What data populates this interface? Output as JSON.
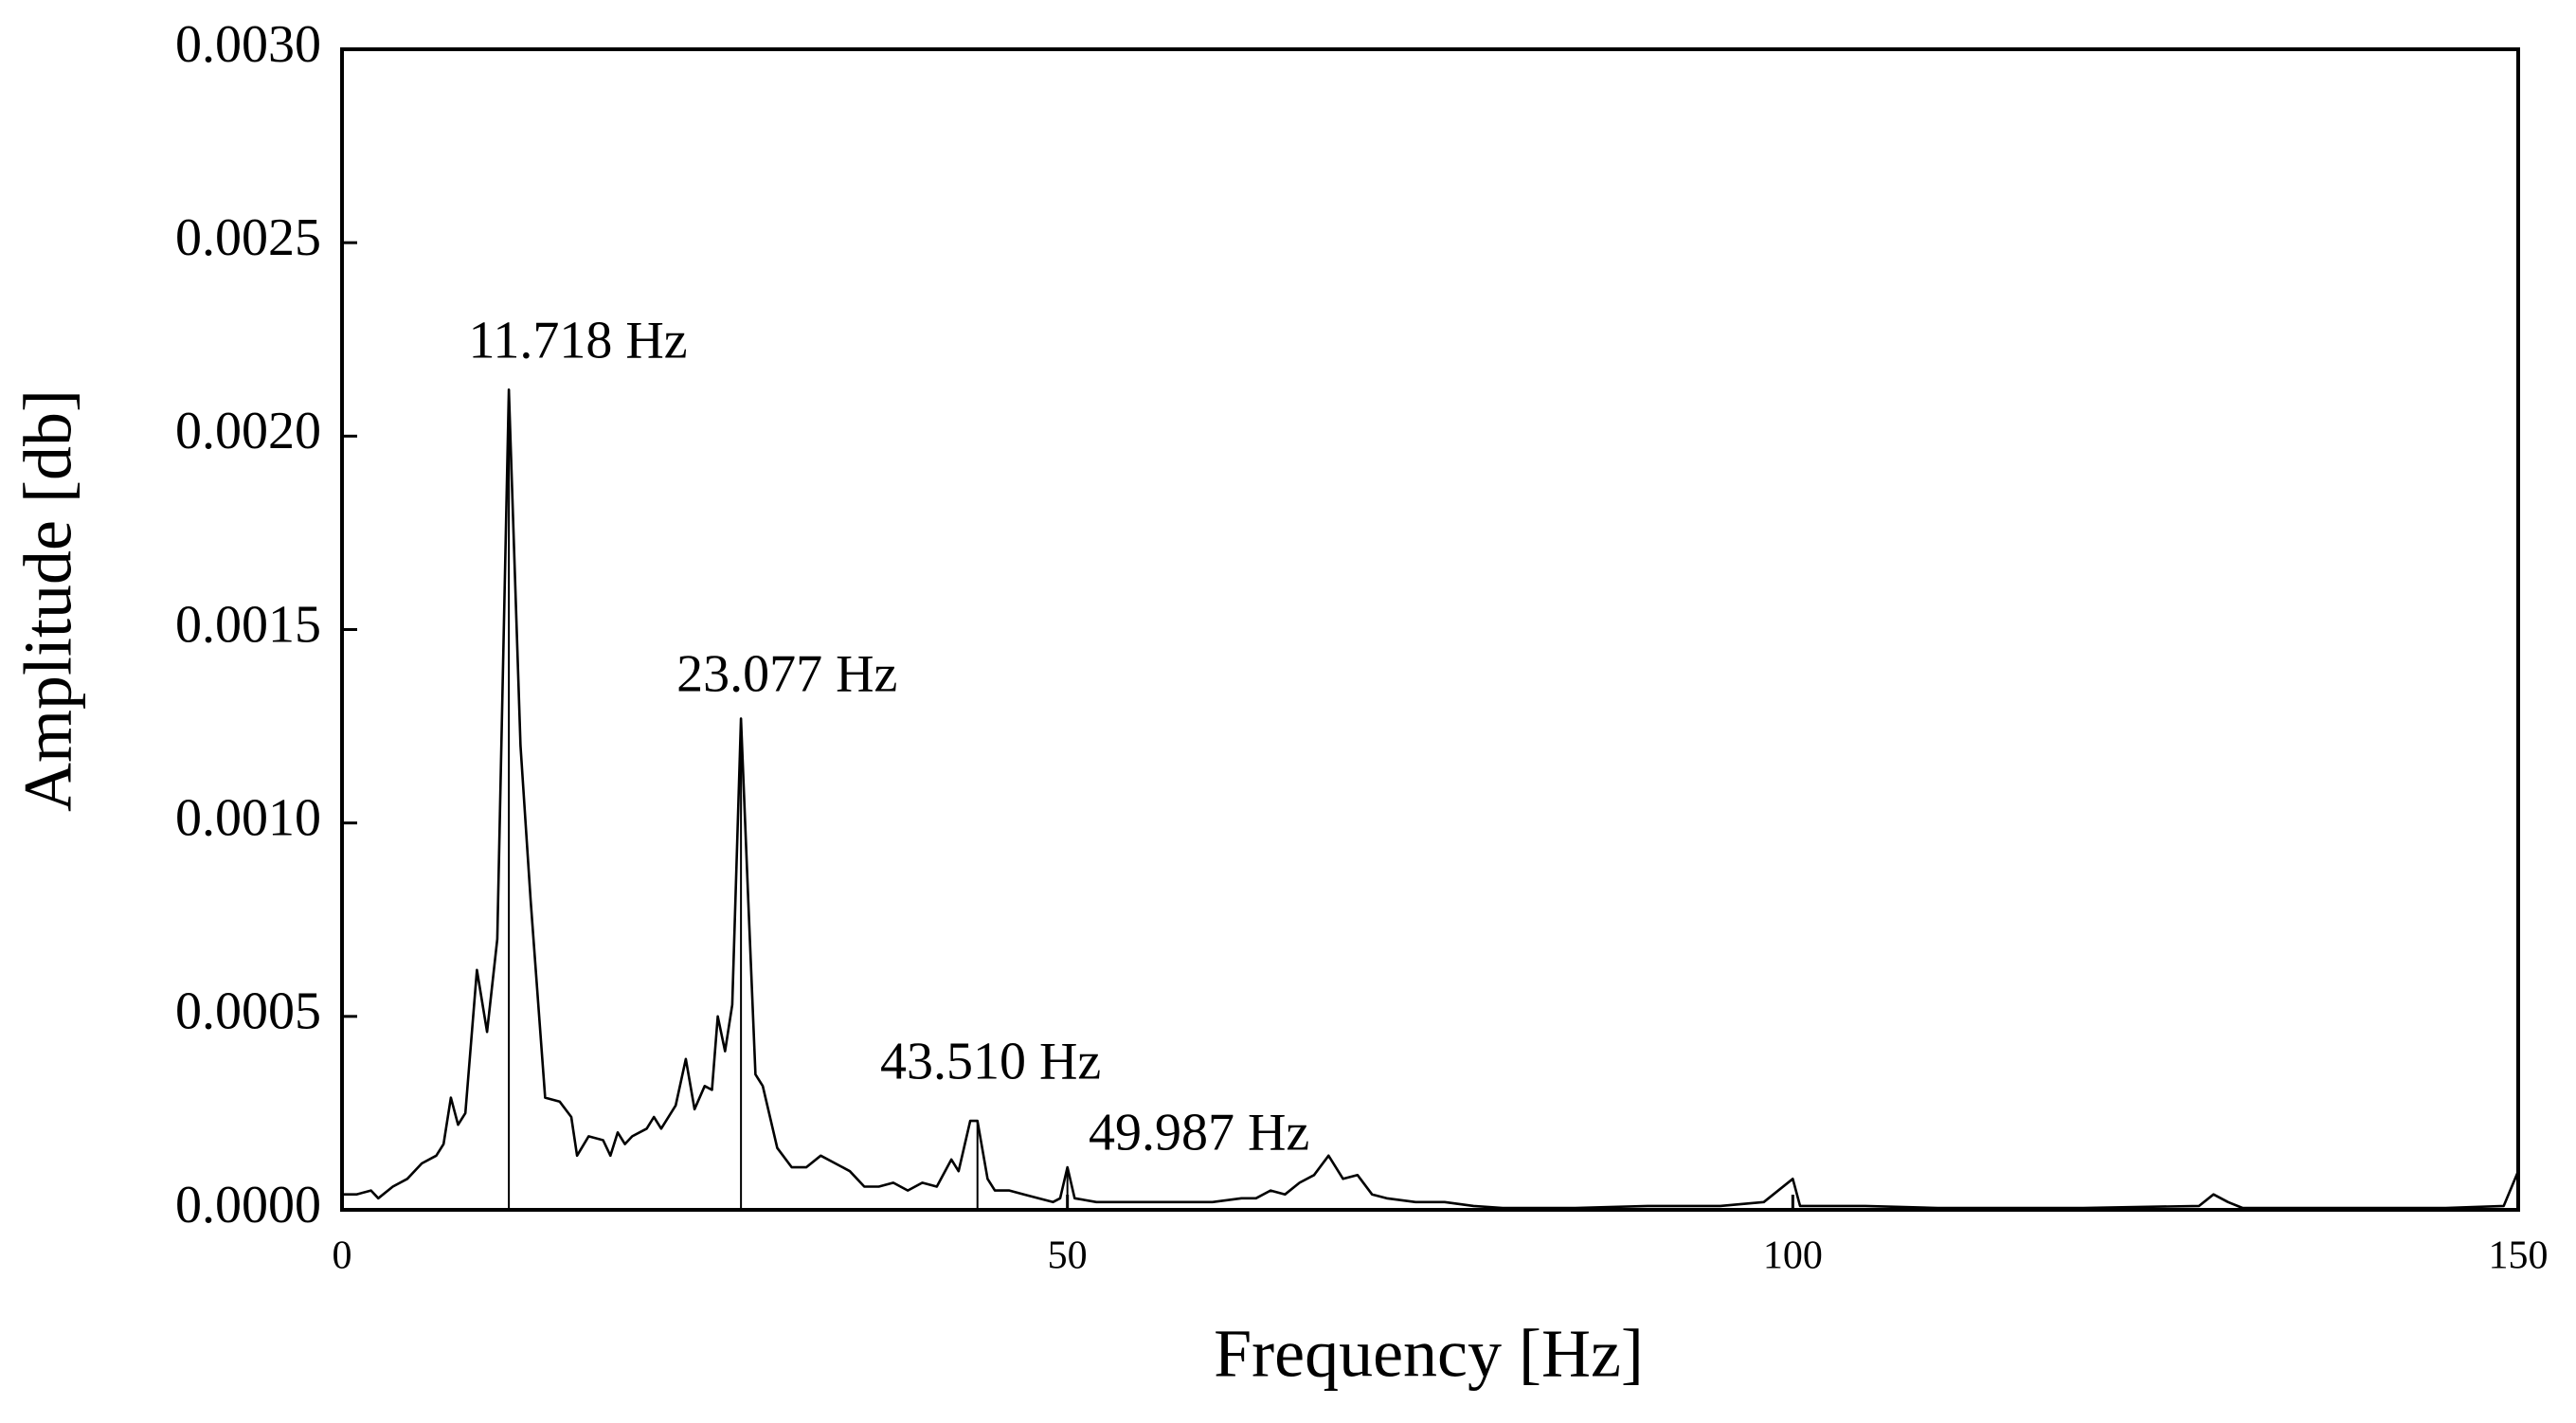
{
  "chart_data": {
    "type": "line",
    "x_label": "Frequency [Hz]",
    "y_label": "Amplitude [db]",
    "xlim": [
      0,
      150
    ],
    "xticks": [
      0,
      50,
      100,
      150
    ],
    "ylim": [
      0,
      0.003
    ],
    "yticks": [
      {
        "value": 0,
        "label": "0.0000"
      },
      {
        "value": 0.0005,
        "label": "0.0005"
      },
      {
        "value": 0.001,
        "label": "0.0010"
      },
      {
        "value": 0.0015,
        "label": "0.0015"
      },
      {
        "value": 0.002,
        "label": "0.0020"
      },
      {
        "value": 0.0025,
        "label": "0.0025"
      },
      {
        "value": 0.003,
        "label": "0.0030"
      }
    ],
    "color": "#000000",
    "x": [
      0,
      1,
      2,
      2.5,
      3.5,
      4.5,
      5.5,
      6.5,
      7,
      7.5,
      8,
      8.5,
      9.3,
      10,
      10.7,
      11.5,
      12.3,
      13,
      14,
      15,
      15.8,
      16.2,
      17,
      18,
      18.5,
      19,
      19.5,
      20,
      21,
      21.5,
      22,
      23,
      23.7,
      24.3,
      25,
      25.5,
      25.9,
      26.4,
      26.9,
      27.5,
      28,
      28.5,
      29,
      30,
      31,
      32,
      33,
      34,
      35,
      36,
      37,
      38,
      39,
      40,
      41,
      42,
      42.5,
      43.3,
      43.8,
      44.5,
      45,
      46,
      47,
      48,
      49,
      49.5,
      50,
      50.5,
      52,
      55,
      60,
      62,
      63,
      64,
      65,
      66,
      67,
      68,
      69,
      70,
      71,
      72,
      74,
      76,
      78,
      80,
      85,
      90,
      95,
      98,
      100,
      100.5,
      105,
      110,
      120,
      128,
      129,
      130,
      131,
      140,
      145,
      149,
      150
    ],
    "values": [
      4e-05,
      4e-05,
      5e-05,
      3e-05,
      6e-05,
      8e-05,
      0.00012,
      0.00014,
      0.00017,
      0.00029,
      0.00022,
      0.00025,
      0.00062,
      0.00046,
      0.0007,
      0.00212,
      0.0012,
      0.0008,
      0.00029,
      0.00028,
      0.00024,
      0.00014,
      0.00019,
      0.00018,
      0.00014,
      0.0002,
      0.00017,
      0.00019,
      0.00021,
      0.00024,
      0.00021,
      0.00027,
      0.00039,
      0.00026,
      0.00032,
      0.00031,
      0.0005,
      0.00041,
      0.00053,
      0.00127,
      0.0008,
      0.00035,
      0.00032,
      0.00016,
      0.00011,
      0.00011,
      0.00014,
      0.00012,
      0.0001,
      6e-05,
      6e-05,
      7e-05,
      5e-05,
      7e-05,
      6e-05,
      0.00013,
      0.0001,
      0.00023,
      0.00023,
      8e-05,
      5e-05,
      5e-05,
      4e-05,
      3e-05,
      2e-05,
      3e-05,
      0.00011,
      3e-05,
      2e-05,
      2e-05,
      2e-05,
      3e-05,
      3e-05,
      5e-05,
      4e-05,
      7e-05,
      9e-05,
      0.00014,
      8e-05,
      9e-05,
      4e-05,
      3e-05,
      2e-05,
      2e-05,
      1e-05,
      5e-06,
      5e-06,
      1e-05,
      1e-05,
      2e-05,
      8e-05,
      1e-05,
      1e-05,
      5e-06,
      5e-06,
      1e-05,
      4e-05,
      2e-05,
      5e-06,
      5e-06,
      5e-06,
      1e-05,
      0.0001
    ],
    "annotations": [
      {
        "label": "11.718 Hz",
        "x": 11.5,
        "y": 0.00212
      },
      {
        "label": "23.077 Hz",
        "x": 27.5,
        "y": 0.00127
      },
      {
        "label": "43.510 Hz",
        "x": 43.8,
        "y": 0.00023
      },
      {
        "label": "49.987 Hz",
        "x": 50,
        "y": 0.00011
      }
    ]
  }
}
